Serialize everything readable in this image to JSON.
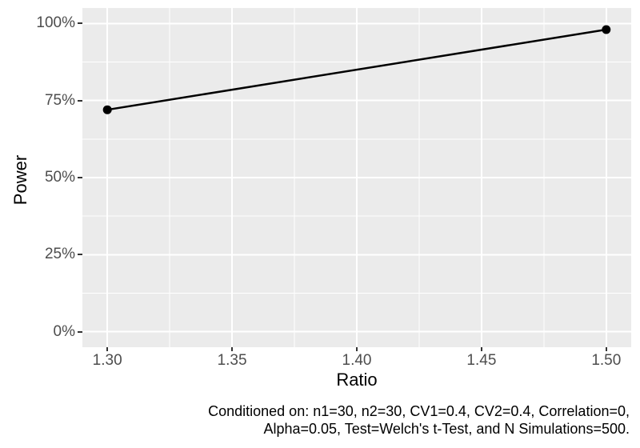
{
  "chart_data": {
    "type": "line",
    "title": "",
    "xlabel": "Ratio",
    "ylabel": "Power",
    "x_tick_labels": [
      "1.30",
      "1.35",
      "1.40",
      "1.45",
      "1.50"
    ],
    "x_tick_values": [
      1.3,
      1.35,
      1.4,
      1.45,
      1.5
    ],
    "y_tick_labels": [
      "0%",
      "25%",
      "50%",
      "75%",
      "100%"
    ],
    "y_tick_values": [
      0,
      25,
      50,
      75,
      100
    ],
    "x_range": [
      1.3,
      1.5
    ],
    "y_range": [
      0,
      100
    ],
    "expansion": 0.05,
    "grid": "major+minor",
    "legend": "none",
    "series": [
      {
        "name": "Power",
        "x": [
          1.3,
          1.5
        ],
        "y": [
          72,
          98
        ],
        "color": "#000000",
        "marker": "circle"
      }
    ]
  },
  "caption": {
    "line1": "Conditioned on: n1=30, n2=30, CV1=0.4, CV2=0.4, Correlation=0,",
    "line2": "Alpha=0.05, Test=Welch's t-Test, and N Simulations=500."
  },
  "style": {
    "panel_bg": "#EBEBEB",
    "grid_color": "#FFFFFF",
    "line_color": "#000000",
    "point_color": "#000000",
    "tick_label_color": "#4D4D4D",
    "tick_mark_color": "#333333",
    "title_color": "#000000"
  }
}
